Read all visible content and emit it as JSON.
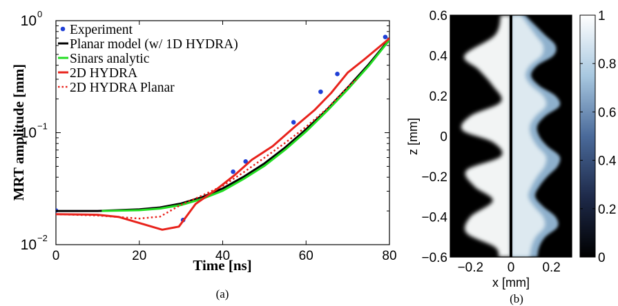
{
  "chart_data": [
    {
      "panel": "(a)",
      "type": "line",
      "xlabel": "Time [ns]",
      "ylabel": "MRT amplitude [mm]",
      "xlim": [
        0,
        80
      ],
      "ylim": [
        0.01,
        1
      ],
      "yscale": "log",
      "xticks": [
        0,
        20,
        40,
        60,
        80
      ],
      "xtick_labels": [
        "0",
        "20",
        "40",
        "60",
        "80"
      ],
      "yticks": [
        0.01,
        0.1,
        1
      ],
      "ytick_labels": [
        {
          "base": "10",
          "exp": "−2"
        },
        {
          "base": "10",
          "exp": "−1"
        },
        {
          "base": "10",
          "exp": "0"
        }
      ],
      "grid": false,
      "legend_position": "top-left",
      "series": [
        {
          "name": "Experiment",
          "style": "points",
          "color": "#1f3fd6",
          "x": [
            0,
            30.5,
            42.5,
            45.5,
            57,
            63.5,
            67.5,
            79
          ],
          "y": [
            0.0202,
            0.0166,
            0.0448,
            0.0553,
            0.1238,
            0.2319,
            0.3343,
            0.7149
          ]
        },
        {
          "name": "Planar model (w/ 1D HYDRA)",
          "style": "solid",
          "color": "#000000",
          "x": [
            0,
            10,
            20,
            25,
            30,
            35,
            40,
            45,
            50,
            55,
            60,
            65,
            70,
            75,
            80
          ],
          "y": [
            0.02,
            0.02,
            0.0207,
            0.0215,
            0.0233,
            0.0265,
            0.0318,
            0.0403,
            0.0531,
            0.0738,
            0.1072,
            0.1603,
            0.2528,
            0.406,
            0.6826
          ]
        },
        {
          "name": "Sinars analytic",
          "style": "solid",
          "color": "#22dd22",
          "x": [
            11,
            20,
            25,
            30,
            35,
            40,
            45,
            50,
            55,
            60,
            65,
            70,
            75,
            80
          ],
          "y": [
            0.02,
            0.0203,
            0.021,
            0.0226,
            0.0256,
            0.0303,
            0.0386,
            0.0505,
            0.0706,
            0.1025,
            0.1558,
            0.2439,
            0.3934,
            0.6721
          ]
        },
        {
          "name": "2D HYDRA",
          "style": "solid",
          "color": "#e8221b",
          "x": [
            0,
            10,
            15,
            20,
            25.5,
            29.5,
            33.5,
            38.5,
            43,
            47,
            52,
            57,
            62,
            66,
            70,
            74,
            80
          ],
          "y": [
            0.0187,
            0.0185,
            0.0177,
            0.0156,
            0.0136,
            0.0145,
            0.0231,
            0.0311,
            0.0422,
            0.0573,
            0.0758,
            0.1105,
            0.1587,
            0.226,
            0.3441,
            0.452,
            0.6938
          ]
        },
        {
          "name": "2D HYDRA Planar",
          "style": "dotted",
          "color": "#e8221b",
          "x": [
            0,
            10,
            20,
            25,
            30,
            35,
            40,
            45,
            50,
            55,
            60,
            65,
            70,
            72
          ],
          "y": [
            0.0187,
            0.0182,
            0.0171,
            0.0178,
            0.0227,
            0.0274,
            0.0335,
            0.0442,
            0.0597,
            0.0812,
            0.1128,
            0.1633,
            0.2556,
            0.298
          ]
        }
      ]
    },
    {
      "panel": "(b)",
      "type": "heatmap",
      "xlabel": "x [mm]",
      "ylabel": "z [mm]",
      "xlim": [
        -0.3,
        0.3
      ],
      "ylim": [
        -0.6,
        0.6
      ],
      "xticks": [
        -0.2,
        0,
        0.2
      ],
      "xtick_labels": [
        "−0.2",
        "0",
        "0.2"
      ],
      "yticks": [
        0.6,
        0.4,
        0.2,
        0,
        -0.2,
        -0.4,
        -0.6
      ],
      "ytick_labels": [
        "0.6",
        "0.4",
        "0.2",
        "0",
        "−0.2",
        "−0.4",
        "−0.6"
      ],
      "colorbar_range": [
        0,
        1
      ],
      "colorbar_ticks": [
        0,
        0.2,
        0.4,
        0.6,
        0.8,
        1
      ],
      "colorbar_tick_labels": [
        "0",
        "0.2",
        "0.4",
        "0.6",
        "0.8",
        "1"
      ],
      "left_boundary": {
        "z": [
          0.6,
          0.5,
          0.4,
          0.33,
          0.25,
          0.17,
          0.1,
          0.03,
          -0.03,
          -0.1,
          -0.17,
          -0.25,
          -0.32,
          -0.4,
          -0.48,
          -0.55,
          -0.6
        ],
        "x": [
          -0.05,
          -0.08,
          -0.23,
          -0.16,
          -0.09,
          -0.05,
          -0.2,
          -0.24,
          -0.09,
          -0.05,
          -0.22,
          -0.18,
          -0.09,
          -0.2,
          -0.22,
          -0.08,
          -0.06
        ]
      },
      "right_boundary": {
        "z": [
          0.6,
          0.55,
          0.5,
          0.45,
          0.4,
          0.35,
          0.3,
          0.25,
          0.2,
          0.15,
          0.1,
          0.05,
          0,
          -0.05,
          -0.1,
          -0.15,
          -0.2,
          -0.25,
          -0.3,
          -0.35,
          -0.4,
          -0.45,
          -0.5,
          -0.55,
          -0.6
        ],
        "x": [
          0.07,
          0.12,
          0.17,
          0.22,
          0.21,
          0.13,
          0.1,
          0.14,
          0.22,
          0.24,
          0.17,
          0.13,
          0.14,
          0.18,
          0.24,
          0.23,
          0.18,
          0.14,
          0.12,
          0.16,
          0.22,
          0.23,
          0.17,
          0.14,
          0.13
        ]
      }
    }
  ],
  "captions": {
    "a": "(a)",
    "b": "(b)"
  }
}
